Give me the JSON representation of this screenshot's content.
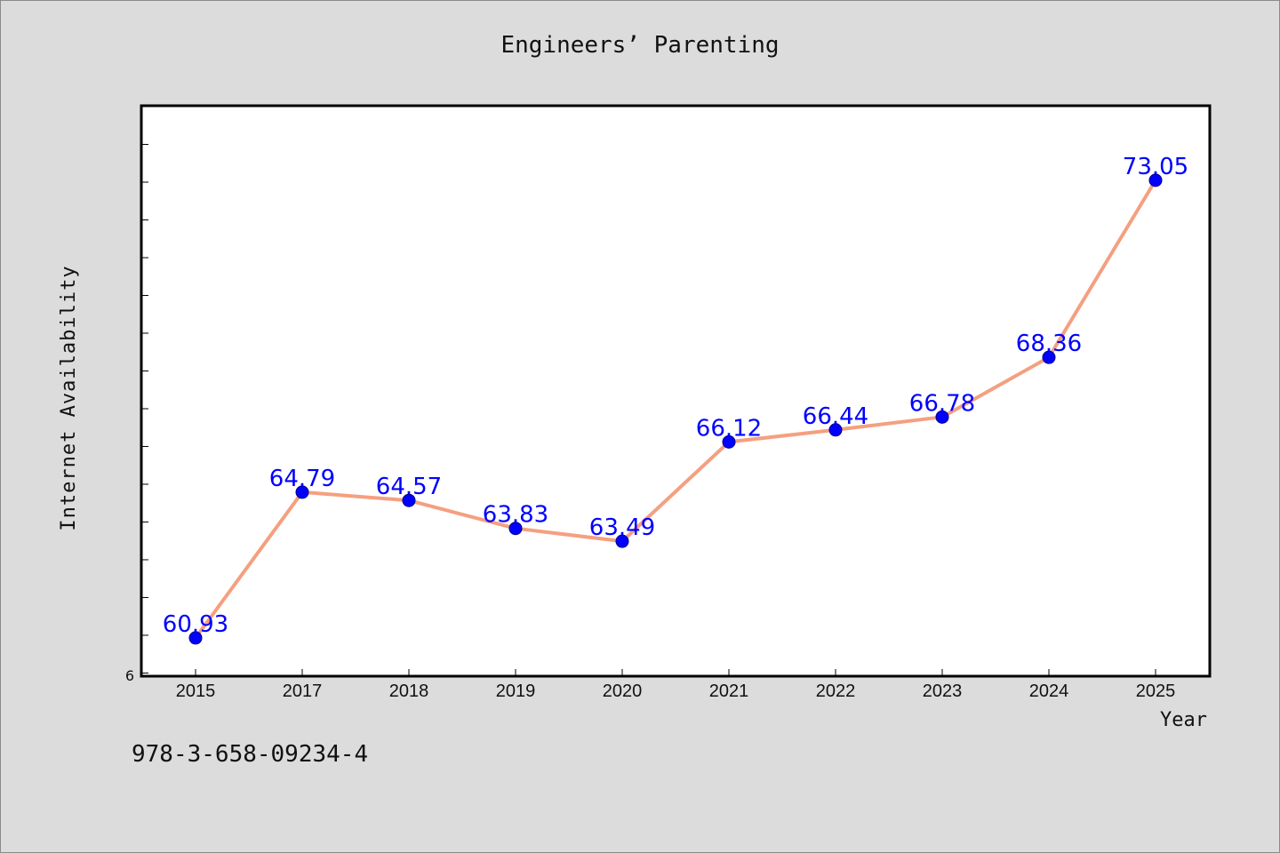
{
  "chart_data": {
    "type": "line",
    "title": "Engineers’ Parenting",
    "xlabel": "Year",
    "ylabel": "Internet Availability",
    "categories": [
      "2015",
      "2017",
      "2018",
      "2019",
      "2020",
      "2021",
      "2022",
      "2023",
      "2024",
      "2025"
    ],
    "values": [
      60.93,
      64.79,
      64.57,
      63.83,
      63.49,
      66.12,
      66.44,
      66.78,
      68.36,
      73.05
    ],
    "value_labels": [
      "60.93",
      "64.79",
      "64.57",
      "63.83",
      "63.49",
      "66.12",
      "66.44",
      "66.78",
      "68.36",
      "73.05"
    ],
    "ylim": [
      59.94,
      75.0
    ],
    "y_tick_label": "6",
    "y_minor_ticks": [
      60,
      61,
      62,
      63,
      64,
      65,
      66,
      67,
      68,
      69,
      70,
      71,
      72,
      73,
      74
    ],
    "y_major_ticks": [
      60,
      65,
      70
    ],
    "grid": false,
    "legend": "none",
    "colors": {
      "line": "#f4a080",
      "marker": "#0000ff",
      "label": "#0000ff"
    }
  },
  "footer": {
    "isbn": "978-3-658-09234-4"
  }
}
